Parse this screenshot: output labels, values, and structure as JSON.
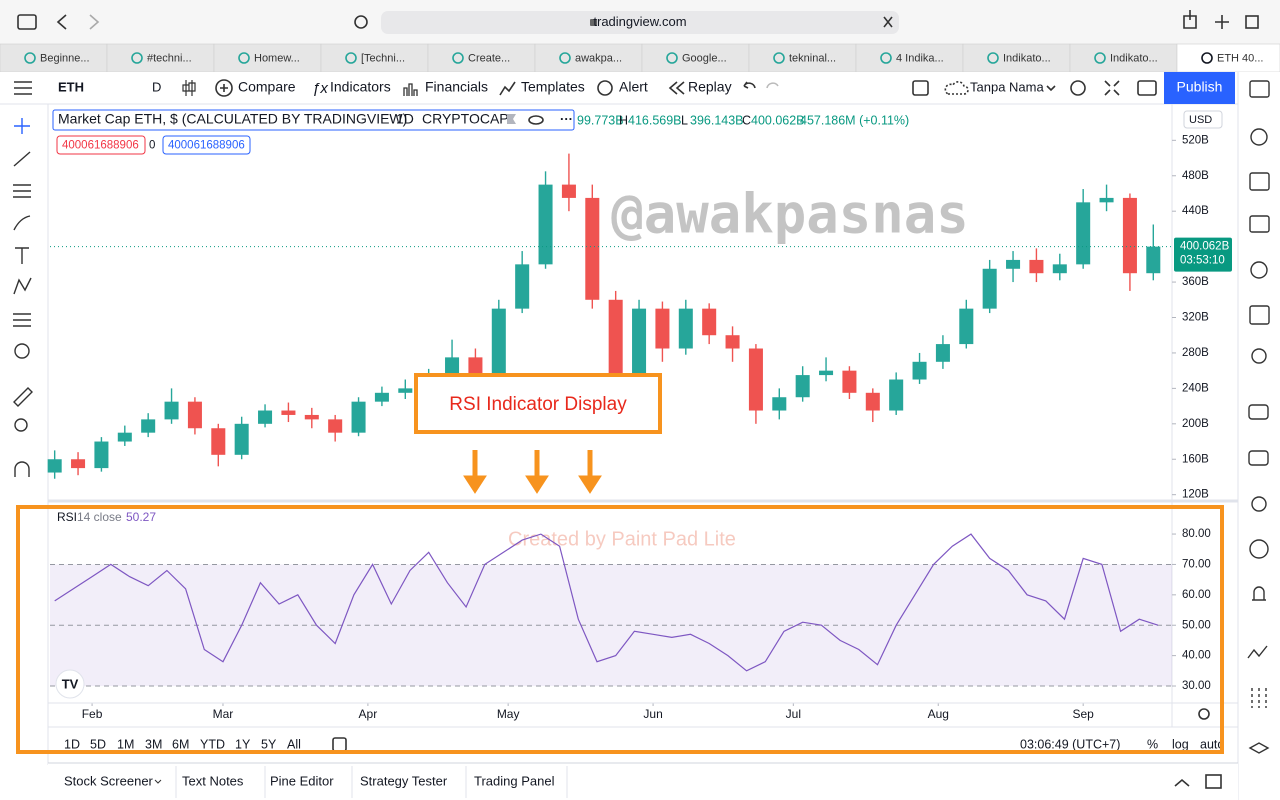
{
  "browser": {
    "url": "tradingview.com",
    "tabs": [
      "Beginne...",
      "#techni...",
      "Homew...",
      "[Techni...",
      "Create...",
      "awakpa...",
      "Google...",
      "tekninal...",
      "4 Indika...",
      "Indikato...",
      "Indikato...",
      "ETH 40..."
    ]
  },
  "toolbar": {
    "symbol": "ETH",
    "interval": "D",
    "buttons": [
      "Compare",
      "Indicators",
      "Financials",
      "Templates",
      "Alert",
      "Replay"
    ],
    "layout_name": "Tanpa Nama",
    "publish": "Publish"
  },
  "legend": {
    "title": "Market Cap ETH, $ (CALCULATED BY TRADINGVIEW)",
    "interval": "1D",
    "exchange": "CRYPTOCAP",
    "open_value": "99.773B",
    "ohlc": [
      {
        "key": "H",
        "value": "416.569B"
      },
      {
        "key": "L",
        "value": "396.143B"
      },
      {
        "key": "C",
        "value": "400.062B"
      }
    ],
    "change": "457.186M (+0.11%)"
  },
  "badges": [
    "400061688906",
    "0",
    "400061688906"
  ],
  "currency": "USD",
  "last_price": {
    "value": 400.062,
    "label": "400.062B"
  },
  "countdown": "03:53:10",
  "watermark": "@awakpasnas",
  "credit": "Created by Paint Pad Lite",
  "annotation": "RSI Indicator Display",
  "ranges": [
    "1D",
    "5D",
    "1M",
    "3M",
    "6M",
    "YTD",
    "1Y",
    "5Y",
    "All"
  ],
  "clock": "03:06:49 (UTC+7)",
  "scale_options": [
    "%",
    "log",
    "auto"
  ],
  "bottom_tabs": [
    "Stock Screener",
    "Text Notes",
    "Pine Editor",
    "Strategy Tester",
    "Trading Panel"
  ],
  "chart_data": [
    {
      "type": "candlestick",
      "up_color": "#26a69a",
      "down_color": "#ef5350",
      "x": [
        24,
        29,
        34,
        39,
        44,
        49,
        54,
        59,
        64,
        69,
        74,
        79,
        84,
        89,
        94,
        99,
        104,
        109,
        114,
        119,
        124,
        129,
        134,
        139,
        144,
        149,
        154,
        159,
        164,
        169,
        174,
        179,
        184,
        189,
        194,
        199,
        204,
        209,
        214,
        219,
        224,
        229,
        234,
        239,
        244,
        249,
        254,
        259
      ],
      "open": [
        145,
        160,
        150,
        180,
        190,
        205,
        225,
        195,
        165,
        200,
        215,
        210,
        205,
        190,
        225,
        235,
        240,
        250,
        275,
        255,
        330,
        380,
        470,
        455,
        340,
        255,
        330,
        285,
        330,
        300,
        285,
        215,
        230,
        255,
        260,
        235,
        215,
        250,
        270,
        290,
        330,
        375,
        385,
        370,
        380,
        450,
        455,
        370
      ],
      "high": [
        170,
        168,
        185,
        198,
        212,
        240,
        230,
        200,
        208,
        222,
        224,
        218,
        210,
        230,
        242,
        250,
        262,
        295,
        285,
        340,
        395,
        485,
        505,
        470,
        350,
        340,
        338,
        340,
        336,
        310,
        290,
        240,
        265,
        275,
        265,
        240,
        258,
        280,
        300,
        340,
        385,
        395,
        398,
        392,
        465,
        470,
        460,
        425
      ],
      "low": [
        138,
        142,
        146,
        175,
        185,
        200,
        188,
        152,
        160,
        196,
        202,
        195,
        180,
        186,
        220,
        228,
        235,
        245,
        240,
        250,
        325,
        375,
        440,
        330,
        228,
        245,
        270,
        278,
        290,
        270,
        200,
        205,
        225,
        248,
        228,
        202,
        210,
        245,
        262,
        285,
        325,
        360,
        360,
        362,
        375,
        440,
        350,
        362
      ],
      "close": [
        160,
        150,
        180,
        190,
        205,
        225,
        195,
        165,
        200,
        215,
        210,
        205,
        190,
        225,
        235,
        240,
        250,
        275,
        255,
        330,
        380,
        470,
        455,
        340,
        255,
        330,
        285,
        330,
        300,
        285,
        215,
        230,
        255,
        260,
        235,
        215,
        250,
        270,
        290,
        330,
        375,
        385,
        370,
        380,
        450,
        455,
        370,
        400
      ],
      "xlim": [
        23,
        263
      ],
      "ylim": [
        114,
        561
      ],
      "yticks": [
        {
          "value": 520,
          "label": "520B"
        },
        {
          "value": 480,
          "label": "480B"
        },
        {
          "value": 440,
          "label": "440B"
        },
        {
          "value": 360,
          "label": "360B"
        },
        {
          "value": 320,
          "label": "320B"
        },
        {
          "value": 280,
          "label": "280B"
        },
        {
          "value": 240,
          "label": "240B"
        },
        {
          "value": 200,
          "label": "200B"
        },
        {
          "value": 160,
          "label": "160B"
        },
        {
          "value": 120,
          "label": "120B"
        }
      ]
    },
    {
      "type": "line",
      "title": "RSI",
      "subtitle": "14 close",
      "value_label": "50.27",
      "color": "#7e57c2",
      "x": [
        24,
        28,
        32,
        36,
        40,
        44,
        48,
        52,
        56,
        60,
        64,
        68,
        72,
        76,
        80,
        84,
        88,
        92,
        96,
        100,
        104,
        108,
        112,
        116,
        120,
        124,
        128,
        132,
        136,
        140,
        144,
        148,
        152,
        156,
        160,
        164,
        168,
        172,
        176,
        180,
        184,
        188,
        192,
        196,
        200,
        204,
        208,
        212,
        216,
        220,
        224,
        228,
        232,
        236,
        240,
        244,
        248,
        252,
        256,
        260
      ],
      "values": [
        58,
        62,
        66,
        70,
        66,
        63,
        68,
        62,
        42,
        38,
        50,
        64,
        57,
        60,
        50,
        44,
        60,
        70,
        57,
        68,
        74,
        64,
        56,
        70,
        74,
        78,
        80,
        76,
        52,
        38,
        40,
        48,
        47,
        46,
        47,
        44,
        40,
        35,
        38,
        48,
        51,
        50,
        45,
        42,
        37,
        50,
        60,
        70,
        76,
        80,
        72,
        68,
        60,
        58,
        52,
        72,
        70,
        48,
        52,
        50
      ],
      "xlim": [
        23,
        263
      ],
      "ylim": [
        25.4,
        88.9
      ],
      "levels": [
        70,
        50,
        30
      ],
      "yticks": [
        {
          "value": 80,
          "label": "80.00"
        },
        {
          "value": 70,
          "label": "70.00"
        },
        {
          "value": 60,
          "label": "60.00"
        },
        {
          "value": 50,
          "label": "50.00"
        },
        {
          "value": 40,
          "label": "40.00"
        },
        {
          "value": 30,
          "label": "30.00"
        }
      ],
      "xticks": [
        {
          "value": 32,
          "label": "Feb"
        },
        {
          "value": 60,
          "label": "Mar"
        },
        {
          "value": 91,
          "label": "Apr"
        },
        {
          "value": 121,
          "label": "May"
        },
        {
          "value": 152,
          "label": "Jun"
        },
        {
          "value": 182,
          "label": "Jul"
        },
        {
          "value": 213,
          "label": "Aug"
        },
        {
          "value": 244,
          "label": "Sep"
        }
      ]
    }
  ]
}
